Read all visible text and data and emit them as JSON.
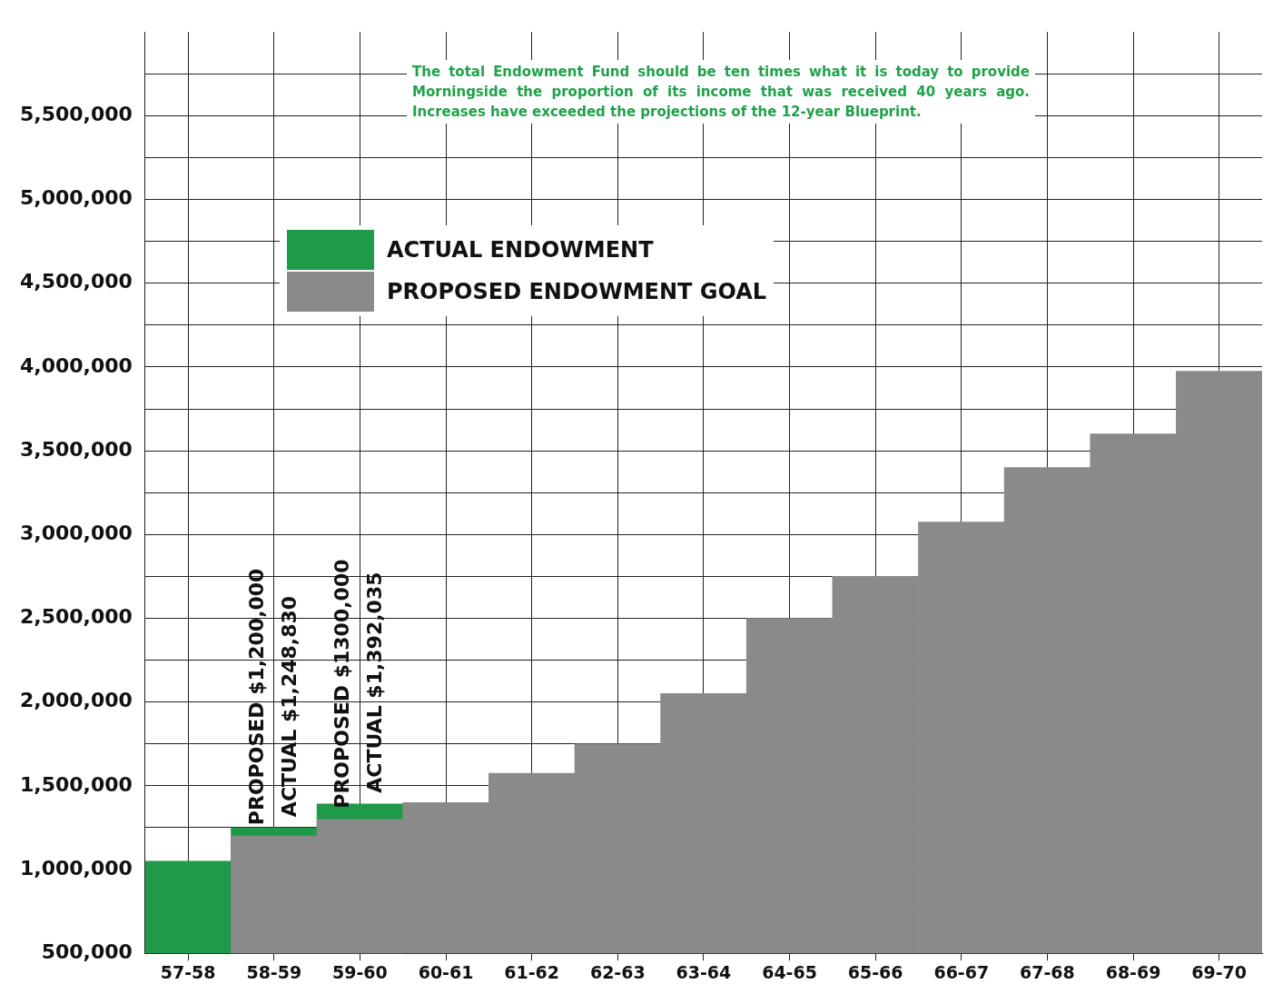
{
  "chart_data": {
    "type": "bar",
    "categories": [
      "57-58",
      "58-59",
      "59-60",
      "60-61",
      "61-62",
      "62-63",
      "63-64",
      "64-65",
      "65-66",
      "66-67",
      "67-68",
      "68-69",
      "69-70"
    ],
    "series": [
      {
        "name": "ACTUAL ENDOWMENT",
        "color": "#1e9a48",
        "values": [
          1050000,
          1248830,
          1392035,
          null,
          null,
          null,
          null,
          null,
          null,
          null,
          null,
          null,
          null
        ],
        "value_labels": [
          null,
          "ACTUAL $1,248,830",
          "ACTUAL $1,392,035",
          null,
          null,
          null,
          null,
          null,
          null,
          null,
          null,
          null,
          null
        ]
      },
      {
        "name": "PROPOSED ENDOWMENT GOAL",
        "color": "#8a8a8a",
        "values": [
          null,
          1200000,
          1300000,
          1400000,
          1575000,
          1750000,
          2050000,
          2500000,
          2750000,
          3075000,
          3400000,
          3600000,
          3975000
        ],
        "value_labels": [
          null,
          "PROPOSED $1,200,000",
          "PROPOSED $1300,000",
          null,
          null,
          null,
          null,
          null,
          null,
          null,
          null,
          null,
          null
        ]
      }
    ],
    "ylim": [
      500000,
      6000000
    ],
    "yticks": [
      {
        "value": 500000,
        "label": "500,000"
      },
      {
        "value": 750000,
        "label": null
      },
      {
        "value": 1000000,
        "label": "1,000,000"
      },
      {
        "value": 1250000,
        "label": null
      },
      {
        "value": 1500000,
        "label": "1,500,000"
      },
      {
        "value": 1750000,
        "label": null
      },
      {
        "value": 2000000,
        "label": "2,000,000"
      },
      {
        "value": 2250000,
        "label": null
      },
      {
        "value": 2500000,
        "label": "2,500,000"
      },
      {
        "value": 2750000,
        "label": null
      },
      {
        "value": 3000000,
        "label": "3,000,000"
      },
      {
        "value": 3250000,
        "label": null
      },
      {
        "value": 3500000,
        "label": "3,500,000"
      },
      {
        "value": 3750000,
        "label": null
      },
      {
        "value": 4000000,
        "label": "4,000,000"
      },
      {
        "value": 4250000,
        "label": null
      },
      {
        "value": 4500000,
        "label": "4,500,000"
      },
      {
        "value": 4750000,
        "label": null
      },
      {
        "value": 5000000,
        "label": "5,000,000"
      },
      {
        "value": 5250000,
        "label": null
      },
      {
        "value": 5500000,
        "label": "5,500,000"
      },
      {
        "value": 5750000,
        "label": null
      }
    ],
    "grid": true,
    "legend": "top left",
    "annotations": [
      "The total Endowment Fund should be ten times what it is today to provide Morningside the proportion of its income that was received 40 years ago. Increases have exceeded the projections of the 12-year Blueprint."
    ]
  }
}
